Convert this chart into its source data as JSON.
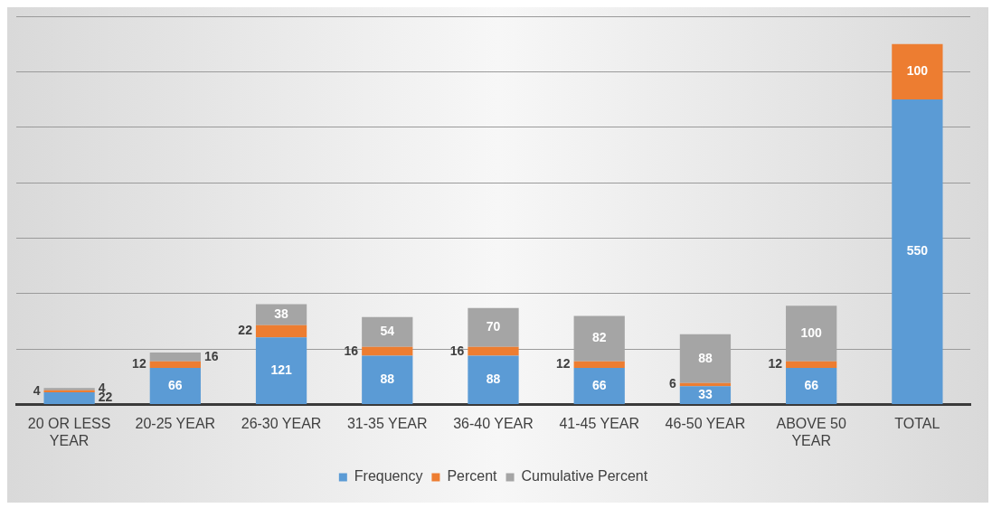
{
  "chart_data": {
    "type": "bar",
    "stacked": true,
    "categories": [
      "20 OR LESS YEAR",
      "20-25 YEAR",
      "26-30 YEAR",
      "31-35 YEAR",
      "36-40 YEAR",
      "41-45 YEAR",
      "46-50 YEAR",
      "ABOVE 50 YEAR",
      "TOTAL"
    ],
    "series": [
      {
        "name": "Frequency",
        "color": "#5b9bd5",
        "values": [
          22,
          66,
          121,
          88,
          88,
          66,
          33,
          66,
          550
        ]
      },
      {
        "name": "Percent",
        "color": "#ed7d31",
        "values": [
          4,
          12,
          22,
          16,
          16,
          12,
          6,
          12,
          100
        ]
      },
      {
        "name": "Cumulative Percent",
        "color": "#a5a5a5",
        "values": [
          4,
          16,
          38,
          54,
          70,
          82,
          88,
          100,
          null
        ]
      }
    ],
    "ylim": [
      0,
      700
    ],
    "yticks": [
      {
        "value": 0,
        "label": null
      },
      {
        "value": 100,
        "label": null
      },
      {
        "value": 200,
        "label": null
      },
      {
        "value": 300,
        "label": null
      },
      {
        "value": 400,
        "label": null
      },
      {
        "value": 500,
        "label": null
      },
      {
        "value": 600,
        "label": null
      },
      {
        "value": 700,
        "label": null
      }
    ],
    "tick_labels": "x",
    "grid": "y",
    "legend": "bottom",
    "data_labels": true
  }
}
